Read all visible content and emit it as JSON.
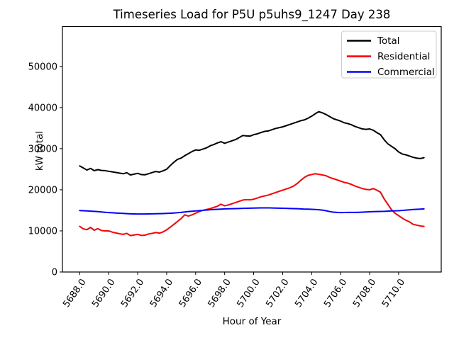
{
  "chart_data": {
    "type": "line",
    "title": "Timeseries Load for P5U p5uhs9_1247  Day 238",
    "xlabel": "Hour of Year",
    "ylabel": "kW total",
    "grid": false,
    "xlim": [
      5686.81,
      5712.94
    ],
    "ylim": [
      0,
      59700
    ],
    "x_start": 5688.0,
    "x_step": 0.25,
    "n_points": 96,
    "xticks": {
      "values": [
        5688,
        5690,
        5692,
        5694,
        5696,
        5698,
        5700,
        5702,
        5704,
        5706,
        5708,
        5710
      ],
      "labels": [
        "5688.0",
        "5690.0",
        "5692.0",
        "5694.0",
        "5696.0",
        "5698.0",
        "5700.0",
        "5702.0",
        "5704.0",
        "5706.0",
        "5708.0",
        "5710.0"
      ],
      "rotation": -55
    },
    "yticks": {
      "values": [
        0,
        10000,
        20000,
        30000,
        40000,
        50000
      ],
      "labels": [
        "0",
        "10000",
        "20000",
        "30000",
        "40000",
        "50000"
      ]
    },
    "legend": {
      "position": "upper right",
      "entries": [
        "Total",
        "Residential",
        "Commercial"
      ]
    },
    "series": [
      {
        "name": "Total",
        "color": "#000000",
        "values": [
          25800,
          25300,
          24800,
          25200,
          24650,
          24900,
          24700,
          24650,
          24500,
          24350,
          24200,
          24050,
          23900,
          24150,
          23600,
          23800,
          24000,
          23700,
          23650,
          23900,
          24200,
          24450,
          24300,
          24600,
          25000,
          25900,
          26700,
          27400,
          27700,
          28300,
          28800,
          29300,
          29700,
          29600,
          29900,
          30200,
          30700,
          31000,
          31400,
          31700,
          31300,
          31600,
          31900,
          32200,
          32700,
          33200,
          33100,
          33050,
          33400,
          33600,
          33900,
          34200,
          34300,
          34600,
          34900,
          35100,
          35300,
          35600,
          35900,
          36200,
          36500,
          36800,
          37000,
          37400,
          37900,
          38500,
          39000,
          38700,
          38300,
          37800,
          37300,
          37000,
          36700,
          36300,
          36100,
          35800,
          35400,
          35100,
          34800,
          34700,
          34800,
          34500,
          33900,
          33400,
          32200,
          31200,
          30600,
          30000,
          29200,
          28700,
          28500,
          28200,
          27900,
          27700,
          27600,
          27800
        ]
      },
      {
        "name": "Residential",
        "color": "#ff0000",
        "values": [
          11100,
          10500,
          10300,
          10850,
          10150,
          10550,
          10100,
          10000,
          10000,
          9700,
          9500,
          9300,
          9150,
          9400,
          8850,
          9000,
          9150,
          8900,
          8950,
          9250,
          9400,
          9600,
          9450,
          9750,
          10250,
          10900,
          11600,
          12300,
          13000,
          13900,
          13600,
          13900,
          14300,
          14700,
          15000,
          15200,
          15400,
          15700,
          16000,
          16500,
          16100,
          16300,
          16600,
          16900,
          17200,
          17500,
          17600,
          17550,
          17700,
          18000,
          18300,
          18500,
          18700,
          19000,
          19300,
          19600,
          19900,
          20200,
          20500,
          20900,
          21500,
          22300,
          23000,
          23500,
          23700,
          23900,
          23750,
          23600,
          23400,
          23000,
          22700,
          22400,
          22100,
          21800,
          21600,
          21300,
          20900,
          20600,
          20300,
          20100,
          20000,
          20300,
          19900,
          19400,
          17800,
          16500,
          15200,
          14300,
          13700,
          13100,
          12600,
          12200,
          11600,
          11400,
          11200,
          11100
        ]
      },
      {
        "name": "Commercial",
        "color": "#0000ff",
        "values": [
          14950,
          14900,
          14850,
          14800,
          14750,
          14680,
          14600,
          14520,
          14450,
          14400,
          14350,
          14300,
          14250,
          14200,
          14150,
          14120,
          14100,
          14100,
          14100,
          14120,
          14150,
          14170,
          14200,
          14220,
          14250,
          14300,
          14350,
          14420,
          14500,
          14600,
          14700,
          14780,
          14850,
          14920,
          15000,
          15080,
          15150,
          15200,
          15250,
          15300,
          15350,
          15380,
          15400,
          15420,
          15450,
          15480,
          15500,
          15520,
          15550,
          15580,
          15600,
          15600,
          15600,
          15580,
          15550,
          15520,
          15500,
          15480,
          15450,
          15420,
          15400,
          15350,
          15300,
          15280,
          15250,
          15200,
          15150,
          15050,
          14900,
          14700,
          14550,
          14500,
          14450,
          14480,
          14500,
          14500,
          14500,
          14520,
          14550,
          14600,
          14650,
          14680,
          14700,
          14720,
          14750,
          14800,
          14850,
          14880,
          14900,
          14980,
          15050,
          15120,
          15200,
          15250,
          15300,
          15350
        ]
      }
    ]
  }
}
